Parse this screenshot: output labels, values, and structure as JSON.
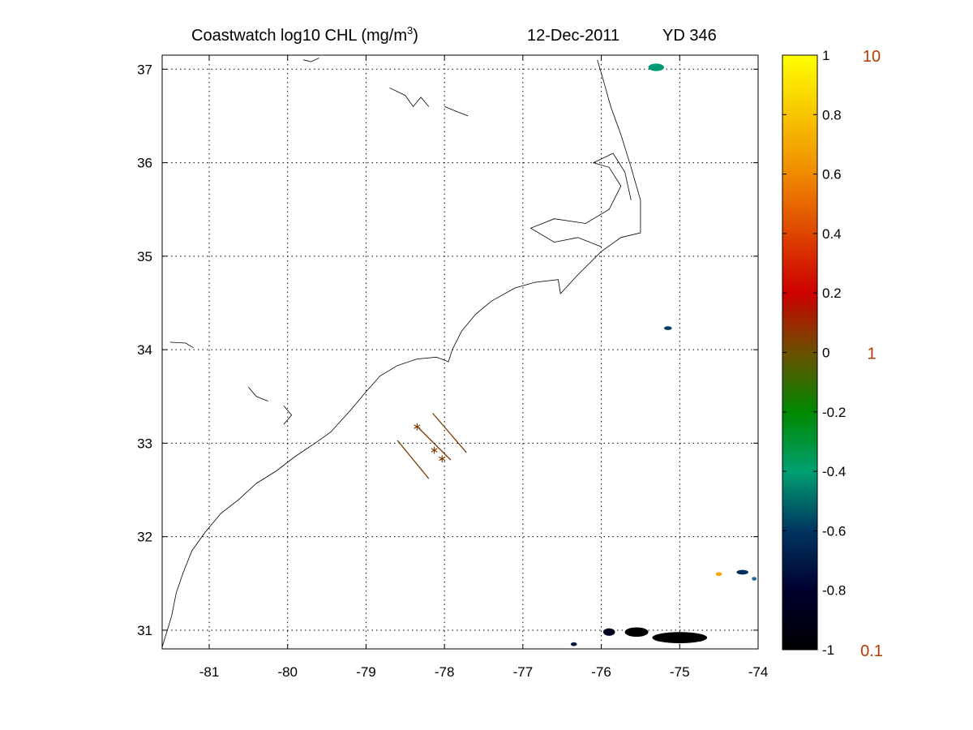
{
  "title": {
    "prefix": "Coastwatch  log10  CHL (mg/m",
    "sup": "3",
    "suffix": ")",
    "date": "12-Dec-2011",
    "yearday": "YD 346"
  },
  "map": {
    "lon_range": [
      -81.6,
      -74.0
    ],
    "lat_range": [
      30.8,
      37.15
    ],
    "grid": true,
    "x_ticks": [
      {
        "value": -81,
        "label": "-81"
      },
      {
        "value": -80,
        "label": "-80"
      },
      {
        "value": -79,
        "label": "-79"
      },
      {
        "value": -78,
        "label": "-78"
      },
      {
        "value": -77,
        "label": "-77"
      },
      {
        "value": -76,
        "label": "-76"
      },
      {
        "value": -75,
        "label": "-75"
      },
      {
        "value": -74,
        "label": "-74"
      }
    ],
    "y_ticks": [
      {
        "value": 31,
        "label": "31"
      },
      {
        "value": 32,
        "label": "32"
      },
      {
        "value": 33,
        "label": "33"
      },
      {
        "value": 34,
        "label": "34"
      },
      {
        "value": 35,
        "label": "35"
      },
      {
        "value": 36,
        "label": "36"
      },
      {
        "value": 37,
        "label": "37"
      }
    ],
    "coastline_color": "#000000",
    "transect_color": "#7a3b00",
    "coastline": [
      [
        -81.6,
        30.82
      ],
      [
        -81.48,
        31.15
      ],
      [
        -81.42,
        31.4
      ],
      [
        -81.33,
        31.62
      ],
      [
        -81.22,
        31.85
      ],
      [
        -81.05,
        32.05
      ],
      [
        -80.85,
        32.25
      ],
      [
        -80.62,
        32.4
      ],
      [
        -80.4,
        32.57
      ],
      [
        -80.15,
        32.7
      ],
      [
        -79.9,
        32.86
      ],
      [
        -79.65,
        33.0
      ],
      [
        -79.45,
        33.12
      ],
      [
        -79.2,
        33.35
      ],
      [
        -79.0,
        33.55
      ],
      [
        -78.82,
        33.72
      ],
      [
        -78.6,
        33.83
      ],
      [
        -78.35,
        33.9
      ],
      [
        -78.1,
        33.92
      ],
      [
        -77.95,
        33.87
      ],
      [
        -77.9,
        34.0
      ],
      [
        -77.78,
        34.2
      ],
      [
        -77.6,
        34.38
      ],
      [
        -77.4,
        34.52
      ],
      [
        -77.1,
        34.66
      ],
      [
        -76.85,
        34.72
      ],
      [
        -76.55,
        34.75
      ],
      [
        -76.52,
        34.6
      ],
      [
        -76.3,
        34.8
      ],
      [
        -76.0,
        35.05
      ],
      [
        -75.75,
        35.2
      ],
      [
        -75.5,
        35.25
      ],
      [
        -75.5,
        35.6
      ],
      [
        -75.62,
        35.95
      ],
      [
        -75.75,
        36.3
      ],
      [
        -75.88,
        36.6
      ],
      [
        -75.98,
        36.9
      ],
      [
        -76.05,
        37.1
      ]
    ],
    "sound_outline": [
      [
        -76.0,
        35.1
      ],
      [
        -76.3,
        35.2
      ],
      [
        -76.6,
        35.15
      ],
      [
        -76.9,
        35.3
      ],
      [
        -76.6,
        35.4
      ],
      [
        -76.2,
        35.35
      ],
      [
        -75.9,
        35.5
      ],
      [
        -75.75,
        35.75
      ],
      [
        -75.9,
        35.95
      ],
      [
        -76.1,
        36.0
      ],
      [
        -75.85,
        36.1
      ],
      [
        -75.7,
        35.9
      ],
      [
        -75.62,
        35.6
      ]
    ],
    "inland_features": [
      [
        [
          -79.8,
          37.1
        ],
        [
          -79.7,
          37.08
        ],
        [
          -79.6,
          37.12
        ]
      ],
      [
        [
          -78.7,
          36.8
        ],
        [
          -78.5,
          36.72
        ],
        [
          -78.4,
          36.6
        ],
        [
          -78.3,
          36.7
        ],
        [
          -78.2,
          36.6
        ]
      ],
      [
        [
          -78.0,
          36.6
        ],
        [
          -77.85,
          36.55
        ],
        [
          -77.7,
          36.5
        ]
      ],
      [
        [
          -80.5,
          33.6
        ],
        [
          -80.4,
          33.5
        ],
        [
          -80.25,
          33.45
        ]
      ],
      [
        [
          -81.5,
          34.08
        ],
        [
          -81.3,
          34.07
        ],
        [
          -81.2,
          34.02
        ]
      ],
      [
        [
          -80.05,
          33.4
        ],
        [
          -79.95,
          33.3
        ],
        [
          -80.05,
          33.2
        ]
      ]
    ],
    "transects": [
      {
        "start": [
          -78.35,
          33.18
        ],
        "end": [
          -77.92,
          32.82
        ],
        "markers": [
          [
            -78.35,
            33.18
          ],
          [
            -78.13,
            32.93
          ],
          [
            -78.03,
            32.84
          ]
        ]
      },
      {
        "start": [
          -78.6,
          33.03
        ],
        "end": [
          -78.2,
          32.62
        ],
        "markers": []
      },
      {
        "start": [
          -78.15,
          33.32
        ],
        "end": [
          -77.72,
          32.9
        ],
        "markers": []
      }
    ],
    "chl_patches": [
      {
        "lon": -75.0,
        "lat": 30.92,
        "w": 0.7,
        "h": 0.12,
        "color": "#000000"
      },
      {
        "lon": -75.55,
        "lat": 30.98,
        "w": 0.3,
        "h": 0.1,
        "color": "#000000"
      },
      {
        "lon": -75.9,
        "lat": 30.98,
        "w": 0.15,
        "h": 0.08,
        "color": "#000020"
      },
      {
        "lon": -76.35,
        "lat": 30.85,
        "w": 0.08,
        "h": 0.04,
        "color": "#001a40"
      },
      {
        "lon": -74.2,
        "lat": 31.62,
        "w": 0.15,
        "h": 0.05,
        "color": "#002e5a"
      },
      {
        "lon": -74.5,
        "lat": 31.6,
        "w": 0.08,
        "h": 0.04,
        "color": "#f2a900"
      },
      {
        "lon": -75.3,
        "lat": 37.02,
        "w": 0.2,
        "h": 0.08,
        "color": "#009977"
      },
      {
        "lon": -75.15,
        "lat": 34.23,
        "w": 0.1,
        "h": 0.04,
        "color": "#003a5a"
      },
      {
        "lon": -74.05,
        "lat": 31.55,
        "w": 0.06,
        "h": 0.04,
        "color": "#1f6a8a"
      }
    ]
  },
  "colorbar": {
    "ticks": [
      {
        "value": 1.0,
        "label": "1"
      },
      {
        "value": 0.8,
        "label": "0.8"
      },
      {
        "value": 0.6,
        "label": "0.6"
      },
      {
        "value": 0.4,
        "label": "0.4"
      },
      {
        "value": 0.2,
        "label": "0.2"
      },
      {
        "value": 0.0,
        "label": "0"
      },
      {
        "value": -0.2,
        "label": "-0.2"
      },
      {
        "value": -0.4,
        "label": "-0.4"
      },
      {
        "value": -0.6,
        "label": "-0.6"
      },
      {
        "value": -0.8,
        "label": "-0.8"
      },
      {
        "value": -1.0,
        "label": "-1"
      }
    ],
    "range": [
      -1.0,
      1.0
    ],
    "gradient": [
      {
        "value": 1.0,
        "color": "#ffff00"
      },
      {
        "value": 0.6,
        "color": "#f08a00"
      },
      {
        "value": 0.2,
        "color": "#cc0000"
      },
      {
        "value": 0.0,
        "color": "#6b5000"
      },
      {
        "value": -0.2,
        "color": "#008800"
      },
      {
        "value": -0.4,
        "color": "#00a070"
      },
      {
        "value": -0.6,
        "color": "#003560"
      },
      {
        "value": -0.8,
        "color": "#000030"
      },
      {
        "value": -1.0,
        "color": "#000000"
      }
    ],
    "label_color": "#b33a00",
    "linear_labels": [
      {
        "value": 1.0,
        "label": "10"
      },
      {
        "value": 0.0,
        "label": "1"
      },
      {
        "value": -1.0,
        "label": "0.1"
      }
    ]
  }
}
